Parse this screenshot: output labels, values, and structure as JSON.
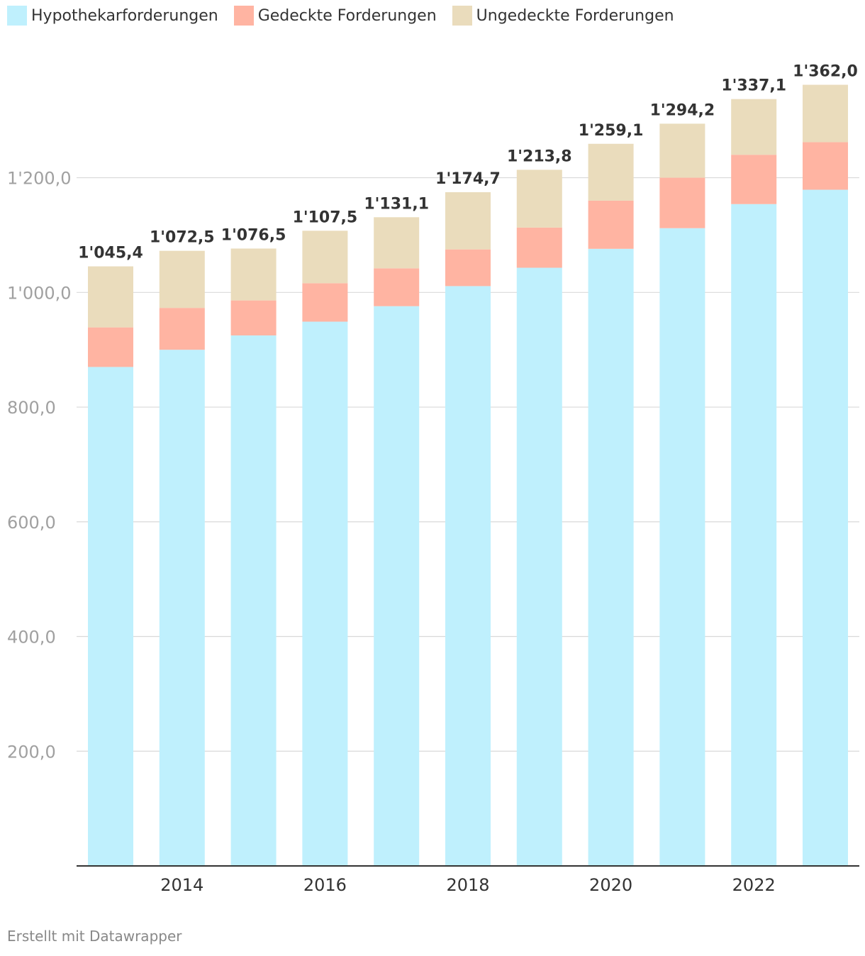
{
  "chart_data": {
    "type": "bar",
    "stacked": true,
    "categories": [
      "2013",
      "2014",
      "2015",
      "2016",
      "2017",
      "2018",
      "2019",
      "2020",
      "2021",
      "2022",
      "2023"
    ],
    "series": [
      {
        "name": "Hypothekarforderungen",
        "color": "#bff0fd",
        "values": [
          870,
          900,
          925,
          949,
          976,
          1011,
          1043,
          1076,
          1112,
          1154,
          1179
        ]
      },
      {
        "name": "Gedeckte Forderungen",
        "color": "#ffb4a2",
        "values": [
          69,
          73,
          61,
          67,
          66,
          64,
          70,
          84,
          88,
          86,
          83
        ]
      },
      {
        "name": "Ungedeckte Forderungen",
        "color": "#eadcbc",
        "values": [
          106.4,
          99.5,
          90.5,
          91.5,
          89.1,
          99.7,
          100.8,
          99.1,
          94.2,
          97.1,
          100.0
        ]
      }
    ],
    "totals": [
      "1'045,4",
      "1'072,5",
      "1'076,5",
      "1'107,5",
      "1'131,1",
      "1'174,7",
      "1'213,8",
      "1'259,1",
      "1'294,2",
      "1'337,1",
      "1'362,0"
    ],
    "y_ticks": [
      200,
      400,
      600,
      800,
      1000,
      1200
    ],
    "y_tick_labels": [
      "200,0",
      "400,0",
      "600,0",
      "800,0",
      "1'000,0",
      "1'200,0"
    ],
    "x_tick_labels": [
      {
        "category": "2014",
        "label": "2014"
      },
      {
        "category": "2016",
        "label": "2016"
      },
      {
        "category": "2018",
        "label": "2018"
      },
      {
        "category": "2020",
        "label": "2020"
      },
      {
        "category": "2022",
        "label": "2022"
      }
    ],
    "ylim": [
      0,
      1400
    ],
    "grid": true,
    "legend": "top-left"
  },
  "footer": "Erstellt mit Datawrapper"
}
